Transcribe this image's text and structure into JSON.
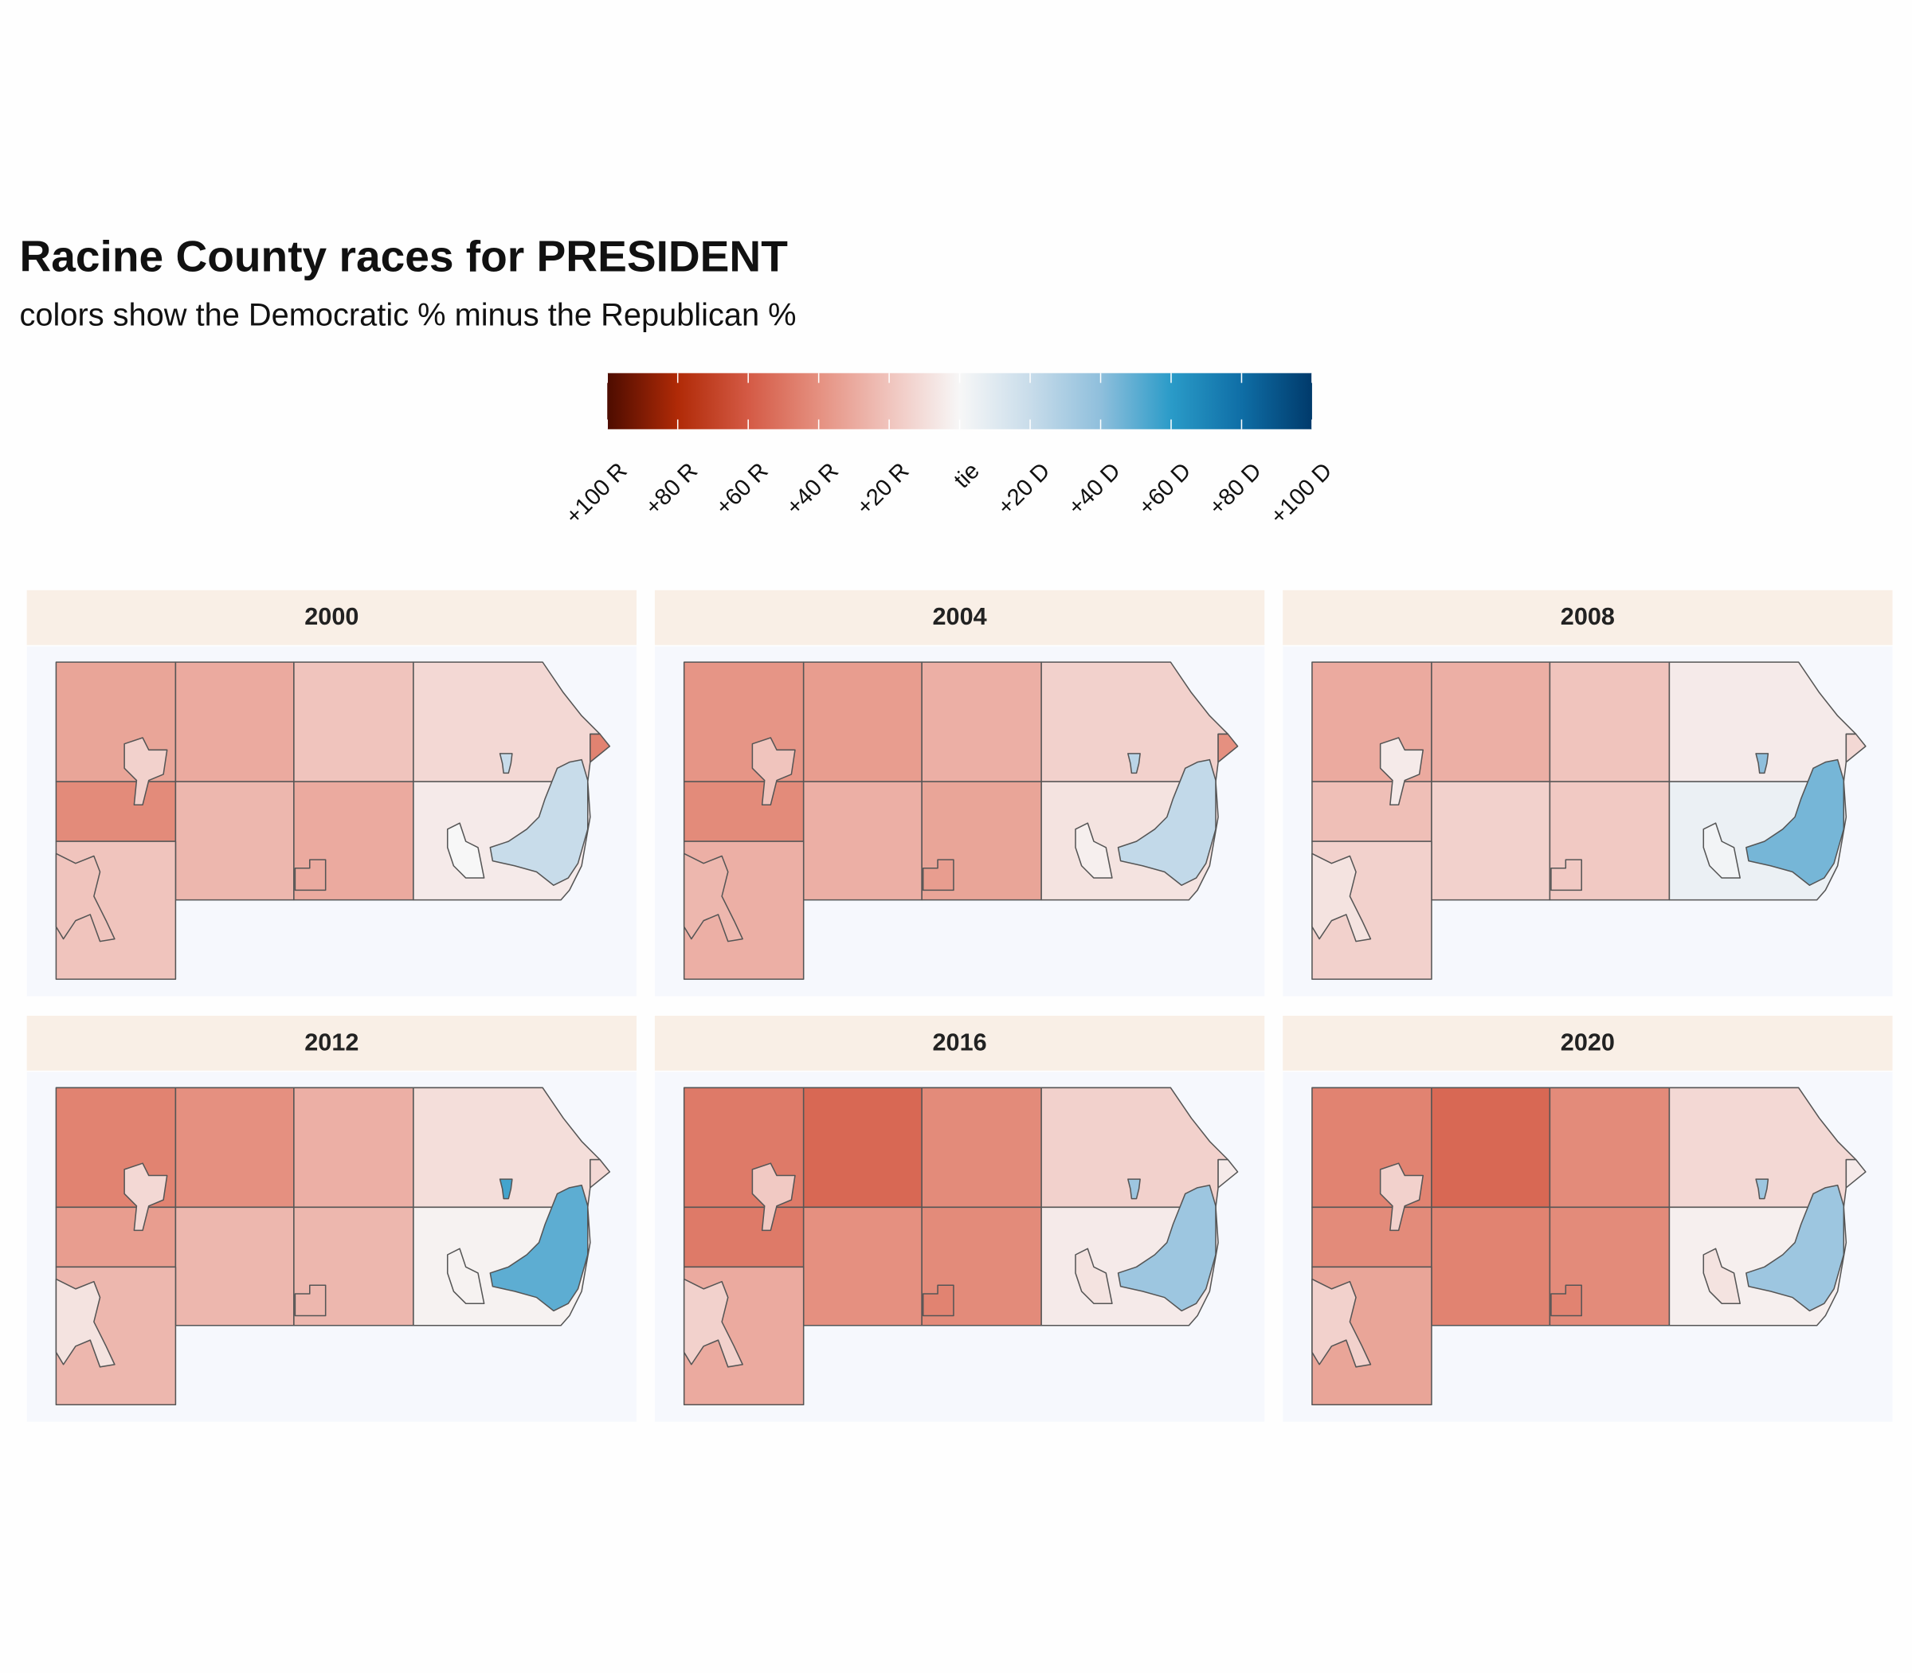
{
  "chart_data": {
    "type": "choropleth",
    "title": "Racine County races for PRESIDENT",
    "subtitle": "colors show the Democratic % minus the Republican %",
    "legend_ticks": [
      {
        "value": -100,
        "label": "+100 R"
      },
      {
        "value": -80,
        "label": "+80 R"
      },
      {
        "value": -60,
        "label": "+60 R"
      },
      {
        "value": -40,
        "label": "+40 R"
      },
      {
        "value": -20,
        "label": "+20 R"
      },
      {
        "value": 0,
        "label": "tie"
      },
      {
        "value": 20,
        "label": "+20 D"
      },
      {
        "value": 40,
        "label": "+40 D"
      },
      {
        "value": 60,
        "label": "+60 D"
      },
      {
        "value": 80,
        "label": "+80 D"
      },
      {
        "value": 100,
        "label": "+100 D"
      }
    ],
    "legend_colors": [
      "#4d0c00",
      "#b02a07",
      "#d45a45",
      "#e59080",
      "#f0c4bd",
      "#f7f7f7",
      "#c8dcea",
      "#8fbfdc",
      "#2a9bc8",
      "#0f6ea6",
      "#003a6b"
    ],
    "facets": [
      {
        "title": "2000",
        "values": [
          -32,
          -30,
          -20,
          -12,
          -42,
          -25,
          -30,
          -5,
          -20,
          -45,
          20,
          0,
          20,
          -15,
          -30,
          -20
        ]
      },
      {
        "title": "2004",
        "values": [
          -38,
          -35,
          -28,
          -15,
          -42,
          -28,
          -32,
          -8,
          -28,
          -40,
          22,
          -3,
          25,
          -20,
          -35,
          -25
        ]
      },
      {
        "title": "2008",
        "values": [
          -30,
          -28,
          -20,
          -5,
          -22,
          -15,
          -18,
          5,
          -15,
          -12,
          45,
          2,
          40,
          -5,
          -18,
          -8
        ]
      },
      {
        "title": "2012",
        "values": [
          -45,
          -40,
          -28,
          -10,
          -35,
          -25,
          -25,
          -2,
          -25,
          -12,
          50,
          -2,
          55,
          -12,
          -25,
          -8
        ]
      },
      {
        "title": "2016",
        "values": [
          -48,
          -55,
          -42,
          -15,
          -48,
          -40,
          -42,
          -5,
          -30,
          -5,
          35,
          -8,
          35,
          -18,
          -45,
          -15
        ]
      },
      {
        "title": "2020",
        "values": [
          -45,
          -55,
          -42,
          -12,
          -42,
          -45,
          -42,
          -3,
          -32,
          -5,
          35,
          -8,
          35,
          -15,
          -45,
          -15
        ]
      }
    ]
  }
}
